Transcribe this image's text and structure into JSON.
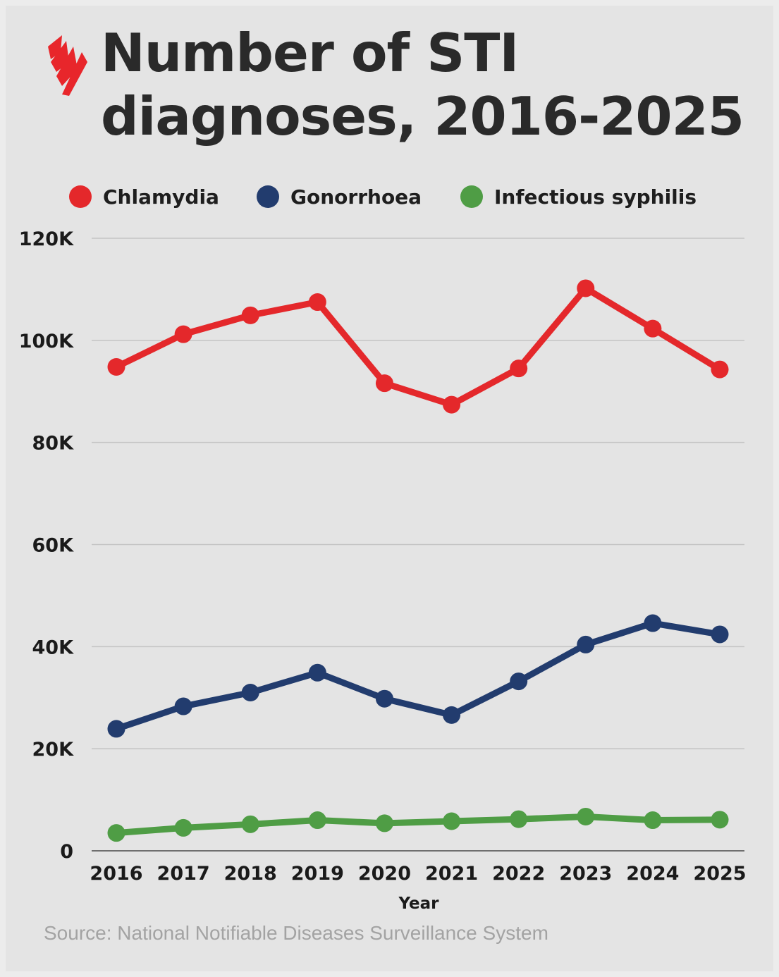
{
  "logo": {
    "icon": "sbs-logo-icon",
    "color": "#e8262b"
  },
  "title": "Number of STI diagnoses, 2016-2025",
  "legend": [
    {
      "label": "Chlamydia",
      "color": "#e4282b"
    },
    {
      "label": "Gonorrhoea",
      "color": "#223c6e"
    },
    {
      "label": "Infectious syphilis",
      "color": "#4f9d45"
    }
  ],
  "source": "Source: National Notifiable Diseases Surveillance System",
  "chart_data": {
    "type": "line",
    "title": "Number of STI diagnoses, 2016-2025",
    "xlabel": "Year",
    "ylabel": "",
    "x": [
      "2016",
      "2017",
      "2018",
      "2019",
      "2020",
      "2021",
      "2022",
      "2023",
      "2024",
      "2025"
    ],
    "ylim": [
      0,
      120000
    ],
    "yticks": [
      0,
      20000,
      40000,
      60000,
      80000,
      100000,
      120000
    ],
    "ytick_labels": [
      "0",
      "20K",
      "40K",
      "60K",
      "80K",
      "100K",
      "120K"
    ],
    "grid": true,
    "legend_position": "top",
    "series": [
      {
        "name": "Chlamydia",
        "color": "#e4282b",
        "values": [
          94800,
          101200,
          104900,
          107500,
          91600,
          87400,
          94500,
          110200,
          102300,
          94300
        ]
      },
      {
        "name": "Gonorrhoea",
        "color": "#223c6e",
        "values": [
          23900,
          28300,
          31000,
          34900,
          29800,
          26600,
          33200,
          40400,
          44600,
          42400
        ]
      },
      {
        "name": "Infectious syphilis",
        "color": "#4f9d45",
        "values": [
          3500,
          4500,
          5200,
          6000,
          5400,
          5800,
          6200,
          6700,
          6000,
          6100
        ]
      }
    ]
  }
}
